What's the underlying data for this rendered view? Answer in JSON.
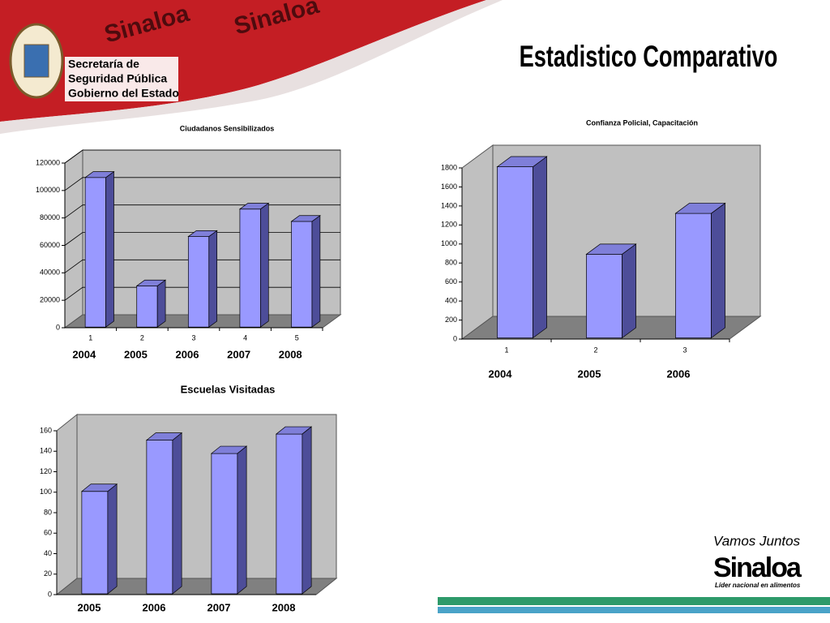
{
  "header": {
    "title": "Estadistico Comparativo",
    "org_lines": [
      "Secretaría de",
      "Seguridad Pública",
      "Gobierno del Estado"
    ],
    "watermark": "Sinaloa",
    "logo_slogan": "Vamos Juntos",
    "logo_name": "Sinaloa",
    "logo_tagline": "Líder nacional en alimentos"
  },
  "chart_data": [
    {
      "type": "bar3d",
      "title": "Ciudadanos Sensibilizados",
      "categories": [
        "1",
        "2",
        "3",
        "4",
        "5"
      ],
      "year_labels": [
        "2004",
        "2005",
        "2006",
        "2007",
        "2008"
      ],
      "values": [
        109000,
        30000,
        66000,
        86000,
        77000
      ],
      "color": "#9999ff",
      "ylim": [
        0,
        120000
      ],
      "yticks": [
        0,
        20000,
        40000,
        60000,
        80000,
        100000,
        120000
      ],
      "grid": true
    },
    {
      "type": "bar3d",
      "title": "Confianza Policial, Capacitación",
      "categories": [
        "1",
        "2",
        "3"
      ],
      "year_labels": [
        "2004",
        "2005",
        "2006"
      ],
      "values": [
        1800,
        880,
        1310
      ],
      "color": "#9999ff",
      "ylim": [
        0,
        1800
      ],
      "yticks": [
        0,
        200,
        400,
        600,
        800,
        1000,
        1200,
        1400,
        1600,
        1800
      ],
      "grid": false
    },
    {
      "type": "bar3d",
      "title": "Escuelas Visitadas",
      "categories": [
        "2005",
        "2006",
        "2007",
        "2008"
      ],
      "values": [
        100,
        150,
        137,
        156
      ],
      "color": "#9999ff",
      "ylim": [
        0,
        160
      ],
      "yticks": [
        0,
        20,
        40,
        60,
        80,
        100,
        120,
        140,
        160
      ],
      "grid": false
    }
  ]
}
